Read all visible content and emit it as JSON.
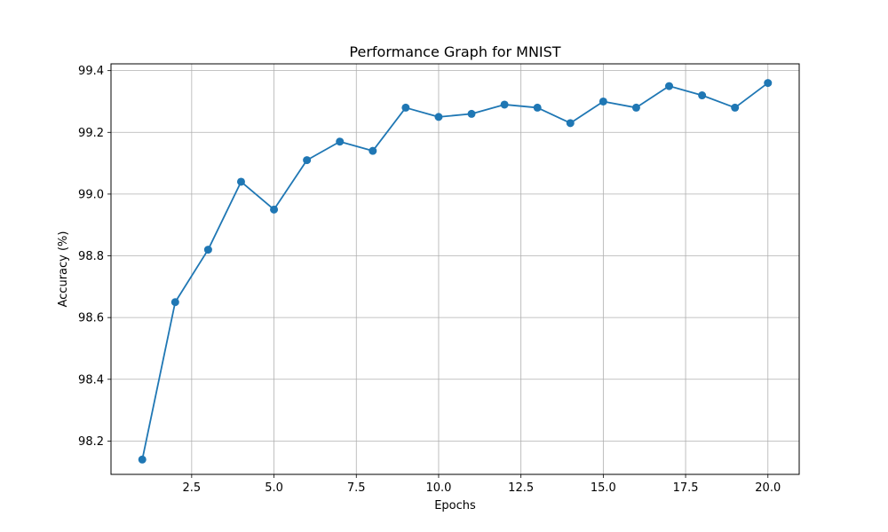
{
  "chart_data": {
    "type": "line",
    "title": "Performance Graph for MNIST",
    "xlabel": "Epochs",
    "ylabel": "Accuracy (%)",
    "xlim": [
      0.05,
      20.95
    ],
    "ylim": [
      98.092,
      99.422
    ],
    "xticks": [
      2.5,
      5.0,
      7.5,
      10.0,
      12.5,
      15.0,
      17.5,
      20.0
    ],
    "xtick_labels": [
      "2.5",
      "5.0",
      "7.5",
      "10.0",
      "12.5",
      "15.0",
      "17.5",
      "20.0"
    ],
    "yticks": [
      98.2,
      98.4,
      98.6,
      98.8,
      99.0,
      99.2,
      99.4
    ],
    "ytick_labels": [
      "98.2",
      "98.4",
      "98.6",
      "98.8",
      "99.0",
      "99.2",
      "99.4"
    ],
    "grid": true,
    "legend": "none",
    "colors": {
      "line": "#1f77b4",
      "marker": "#1f77b4",
      "grid": "#b0b0b0",
      "axes": "#000000"
    },
    "series": [
      {
        "x": [
          1,
          2,
          3,
          4,
          5,
          6,
          7,
          8,
          9,
          10,
          11,
          12,
          13,
          14,
          15,
          16,
          17,
          18,
          19,
          20
        ],
        "values": [
          98.14,
          98.65,
          98.82,
          99.04,
          98.95,
          99.11,
          99.17,
          99.14,
          99.28,
          99.25,
          99.26,
          99.29,
          99.28,
          99.23,
          99.3,
          99.28,
          99.35,
          99.32,
          99.28,
          99.36
        ]
      }
    ]
  }
}
